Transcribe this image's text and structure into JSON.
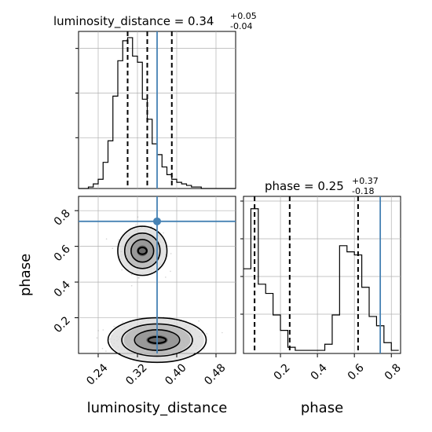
{
  "colors": {
    "truth": "#4682b4",
    "line": "#000000",
    "grid": "#b0b0b0"
  },
  "chart_data": [
    {
      "type": "histogram",
      "panel": "top-left",
      "parameter": "luminosity_distance",
      "title": {
        "main": "luminosity_distance = 0.34",
        "sup": "+0.05",
        "sub": "-0.04"
      },
      "xlim": [
        0.2,
        0.52
      ],
      "bin_edges": [
        0.2,
        0.21,
        0.22,
        0.23,
        0.24,
        0.25,
        0.26,
        0.27,
        0.28,
        0.29,
        0.3,
        0.31,
        0.32,
        0.33,
        0.34,
        0.35,
        0.36,
        0.37,
        0.38,
        0.39,
        0.4,
        0.41,
        0.42,
        0.43,
        0.44,
        0.45,
        0.46,
        0.47,
        0.48,
        0.49,
        0.5,
        0.51,
        0.52
      ],
      "counts": [
        0,
        0,
        0.01,
        0.03,
        0.06,
        0.17,
        0.31,
        0.6,
        0.83,
        0.96,
        0.98,
        0.86,
        0.82,
        0.58,
        0.45,
        0.29,
        0.22,
        0.14,
        0.09,
        0.06,
        0.04,
        0.03,
        0.02,
        0.01,
        0.01,
        0,
        0,
        0,
        0,
        0,
        0,
        0
      ],
      "quantiles": [
        0.3,
        0.34,
        0.39
      ],
      "truth": 0.36
    },
    {
      "type": "histogram",
      "panel": "bottom-right",
      "parameter": "phase",
      "title": {
        "main": "phase = 0.25",
        "sup": "+0.37",
        "sub": "-0.18"
      },
      "xlim": [
        0.0,
        0.85
      ],
      "xticks": [
        "0.2",
        "0.4",
        "0.6",
        "0.8"
      ],
      "xlabel": "phase",
      "bin_edges": [
        0.0,
        0.04,
        0.08,
        0.12,
        0.16,
        0.2,
        0.24,
        0.28,
        0.32,
        0.36,
        0.4,
        0.44,
        0.48,
        0.52,
        0.56,
        0.6,
        0.64,
        0.68,
        0.72,
        0.76,
        0.8,
        0.84
      ],
      "counts": [
        0.55,
        0.94,
        0.45,
        0.39,
        0.25,
        0.15,
        0.04,
        0.02,
        0.02,
        0.02,
        0.02,
        0.06,
        0.25,
        0.7,
        0.66,
        0.64,
        0.43,
        0.24,
        0.18,
        0.07,
        0.02
      ],
      "quantiles": [
        0.06,
        0.25,
        0.62
      ],
      "truth": 0.74
    },
    {
      "type": "scatter",
      "panel": "bottom-left",
      "x_parameter": "luminosity_distance",
      "y_parameter": "phase",
      "xlim": [
        0.2,
        0.52
      ],
      "ylim": [
        0.0,
        0.88
      ],
      "xticks": [
        "0.24",
        "0.32",
        "0.40",
        "0.48"
      ],
      "yticks": [
        "0.2",
        "0.4",
        "0.6",
        "0.8"
      ],
      "xlabel": "luminosity_distance",
      "ylabel": "phase",
      "modes": [
        {
          "center": [
            0.33,
            0.575
          ],
          "sigma": [
            0.02,
            0.055
          ],
          "weight": 0.45
        },
        {
          "center": [
            0.36,
            0.075
          ],
          "sigma": [
            0.04,
            0.05
          ],
          "weight": 0.55
        }
      ],
      "truth": {
        "x": 0.36,
        "y": 0.74
      }
    }
  ]
}
